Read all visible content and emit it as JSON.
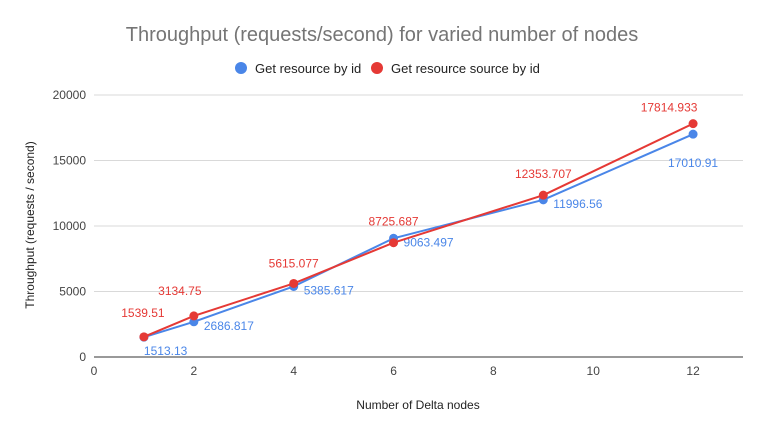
{
  "chart_data": {
    "type": "line",
    "title": "Throughput (requests/second) for varied number of nodes",
    "xlabel": "Number of Delta nodes",
    "ylabel": "Throughput (requests / second)",
    "xlim": [
      0,
      13
    ],
    "ylim": [
      0,
      20000
    ],
    "x_ticks": [
      0,
      2,
      4,
      6,
      8,
      10,
      12
    ],
    "y_ticks": [
      0,
      5000,
      10000,
      15000,
      20000
    ],
    "grid": "horizontal",
    "legend_position": "top",
    "x": [
      1,
      2,
      4,
      6,
      9,
      12
    ],
    "series": [
      {
        "name": "Get resource by id",
        "color": "#4a86e8",
        "values": [
          1513.13,
          2686.817,
          5385.617,
          9063.497,
          11996.56,
          17010.91
        ],
        "labels": [
          "1513.13",
          "2686.817",
          "5385.617",
          "9063.497",
          "11996.56",
          "17010.91"
        ]
      },
      {
        "name": "Get resource source by id",
        "color": "#e53935",
        "values": [
          1539.51,
          3134.75,
          5615.077,
          8725.687,
          12353.707,
          17814.933
        ],
        "labels": [
          "1539.51",
          "3134.75",
          "5615.077",
          "8725.687",
          "12353.707",
          "17814.933"
        ]
      }
    ]
  }
}
